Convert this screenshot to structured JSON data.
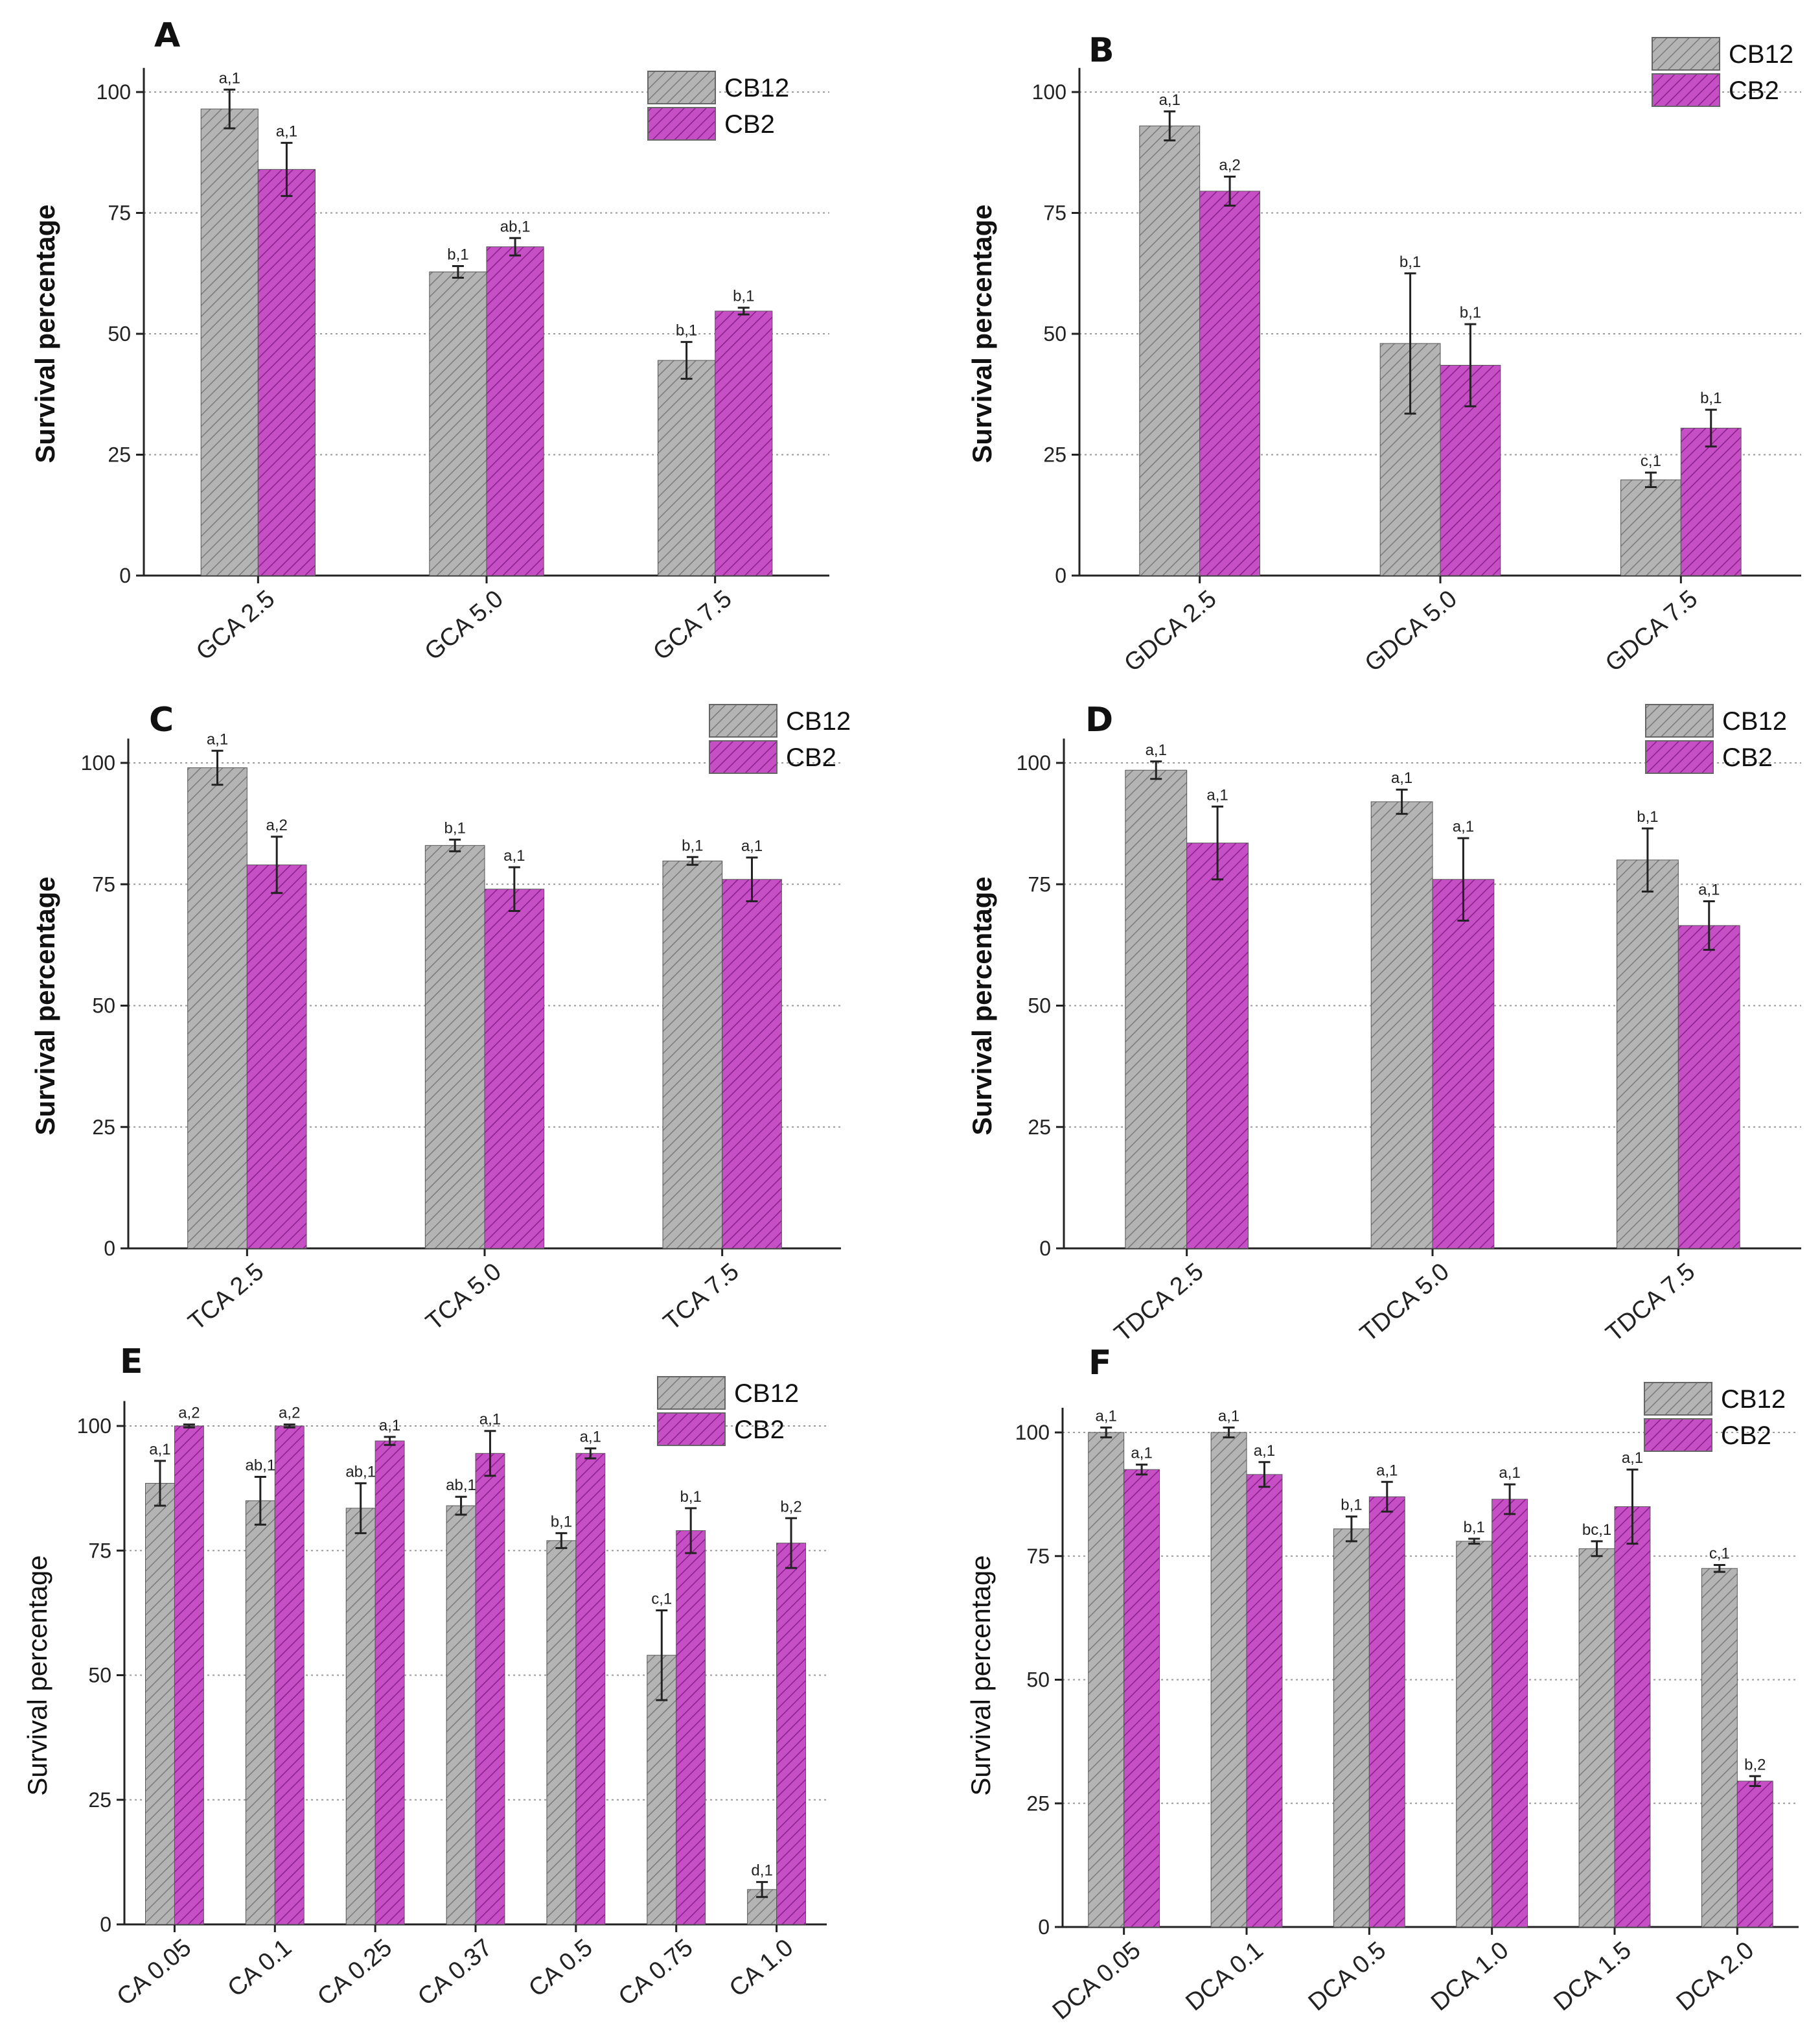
{
  "colors": {
    "CB12": "#b4b4b4",
    "CB2": "#c64fc6",
    "axis": "#222222",
    "grid": "#9a9a9a",
    "errorbar": "#222222"
  },
  "legend": [
    "CB12",
    "CB2"
  ],
  "chart_data": [
    {
      "panel": "A",
      "type": "bar",
      "ylabel": "Survival percentage",
      "ylabel_bold": true,
      "ylim": [
        0,
        105
      ],
      "yticks": [
        0,
        25,
        50,
        75,
        100
      ],
      "grid": "horizontal dotted",
      "legend_position": "top-right",
      "categories": [
        "GCA 2.5",
        "GCA 5.0",
        "GCA 7.5"
      ],
      "series": [
        {
          "name": "CB12",
          "values": [
            96.5,
            62.8,
            44.5
          ],
          "errors": [
            4.0,
            1.2,
            3.8
          ],
          "labels": [
            "a,1",
            "b,1",
            "b,1"
          ]
        },
        {
          "name": "CB2",
          "values": [
            84.0,
            68.0,
            54.7
          ],
          "errors": [
            5.5,
            1.8,
            0.7
          ],
          "labels": [
            "a,1",
            "ab,1",
            "b,1"
          ]
        }
      ]
    },
    {
      "panel": "B",
      "type": "bar",
      "ylabel": "Survival percentage",
      "ylabel_bold": true,
      "ylim": [
        0,
        105
      ],
      "yticks": [
        0,
        25,
        50,
        75,
        100
      ],
      "grid": "horizontal dotted",
      "legend_position": "top-right",
      "categories": [
        "GDCA 2.5",
        "GDCA 5.0",
        "GDCA 7.5"
      ],
      "series": [
        {
          "name": "CB12",
          "values": [
            93.0,
            48.0,
            19.8
          ],
          "errors": [
            3.0,
            14.5,
            1.5
          ],
          "labels": [
            "a,1",
            "b,1",
            "c,1"
          ]
        },
        {
          "name": "CB2",
          "values": [
            79.5,
            43.5,
            30.5
          ],
          "errors": [
            3.0,
            8.5,
            3.8
          ],
          "labels": [
            "a,2",
            "b,1",
            "b,1"
          ]
        }
      ]
    },
    {
      "panel": "C",
      "type": "bar",
      "ylabel": "Survival percentage",
      "ylabel_bold": true,
      "ylim": [
        0,
        105
      ],
      "yticks": [
        0,
        25,
        50,
        75,
        100
      ],
      "grid": "horizontal dotted",
      "legend_position": "top-right",
      "categories": [
        "TCA 2.5",
        "TCA 5.0",
        "TCA 7.5"
      ],
      "series": [
        {
          "name": "CB12",
          "values": [
            99.0,
            83.0,
            79.8
          ],
          "errors": [
            3.5,
            1.2,
            0.8
          ],
          "labels": [
            "a,1",
            "b,1",
            "b,1"
          ]
        },
        {
          "name": "CB2",
          "values": [
            79.0,
            74.0,
            76.0
          ],
          "errors": [
            5.8,
            4.5,
            4.5
          ],
          "labels": [
            "a,2",
            "a,1",
            "a,1"
          ]
        }
      ]
    },
    {
      "panel": "D",
      "type": "bar",
      "ylabel": "Survival percentage",
      "ylabel_bold": true,
      "ylim": [
        0,
        105
      ],
      "yticks": [
        0,
        25,
        50,
        75,
        100
      ],
      "grid": "horizontal dotted",
      "legend_position": "top-right",
      "categories": [
        "TDCA 2.5",
        "TDCA 5.0",
        "TDCA 7.5"
      ],
      "series": [
        {
          "name": "CB12",
          "values": [
            98.5,
            92.0,
            80.0
          ],
          "errors": [
            1.8,
            2.5,
            6.5
          ],
          "labels": [
            "a,1",
            "a,1",
            "b,1"
          ]
        },
        {
          "name": "CB2",
          "values": [
            83.5,
            76.0,
            66.5
          ],
          "errors": [
            7.5,
            8.5,
            5.0
          ],
          "labels": [
            "a,1",
            "a,1",
            "a,1"
          ]
        }
      ]
    },
    {
      "panel": "E",
      "type": "bar",
      "ylabel": "Survival percentage",
      "ylabel_bold": false,
      "ylim": [
        0,
        105
      ],
      "yticks": [
        0,
        25,
        50,
        75,
        100
      ],
      "grid": "horizontal dotted",
      "legend_position": "top-right",
      "categories": [
        "CA 0.05",
        "CA 0.1",
        "CA 0.25",
        "CA 0.37",
        "CA 0.5",
        "CA 0.75",
        "CA 1.0"
      ],
      "series": [
        {
          "name": "CB12",
          "values": [
            88.5,
            85.0,
            83.5,
            84.0,
            77.0,
            54.0,
            7.0
          ],
          "errors": [
            4.5,
            4.8,
            5.0,
            1.8,
            1.5,
            9.0,
            1.5
          ],
          "labels": [
            "a,1",
            "ab,1",
            "ab,1",
            "ab,1",
            "b,1",
            "c,1",
            "d,1"
          ]
        },
        {
          "name": "CB2",
          "values": [
            100.0,
            100.0,
            97.0,
            94.5,
            94.5,
            79.0,
            76.5
          ],
          "errors": [
            0.3,
            0.3,
            0.8,
            4.5,
            1.0,
            4.5,
            5.0
          ],
          "labels": [
            "a,2",
            "a,2",
            "a,1",
            "a,1",
            "a,1",
            "b,1",
            "b,2"
          ]
        }
      ]
    },
    {
      "panel": "F",
      "type": "bar",
      "ylabel": "Survival percentage",
      "ylabel_bold": false,
      "ylim": [
        0,
        105
      ],
      "yticks": [
        0,
        25,
        50,
        75,
        100
      ],
      "grid": "horizontal dotted",
      "legend_position": "top-right",
      "categories": [
        "DCA 0.05",
        "DCA 0.1",
        "DCA 0.5",
        "DCA 1.0",
        "DCA 1.5",
        "DCA 2.0"
      ],
      "series": [
        {
          "name": "CB12",
          "values": [
            100.0,
            100.0,
            80.5,
            78.0,
            76.5,
            72.5
          ],
          "errors": [
            1.0,
            1.0,
            2.5,
            0.5,
            1.5,
            0.7
          ],
          "labels": [
            "a,1",
            "a,1",
            "b,1",
            "b,1",
            "bc,1",
            "c,1"
          ]
        },
        {
          "name": "CB2",
          "values": [
            92.5,
            91.5,
            87.0,
            86.5,
            85.0,
            29.5
          ],
          "errors": [
            1.0,
            2.5,
            3.0,
            3.0,
            7.5,
            1.0
          ],
          "labels": [
            "a,1",
            "a,1",
            "a,1",
            "a,1",
            "a,1",
            "b,2"
          ]
        }
      ]
    }
  ]
}
